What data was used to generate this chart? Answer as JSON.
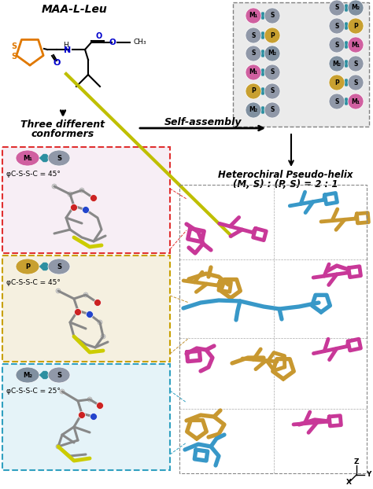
{
  "title": "MAA-L-Leu",
  "subtitle_conformers": "Three different\nconformers",
  "arrow_self_assembly": "Self-assembly",
  "helix_title": "Heterochiral Pseudo-helix\n(M, S) : (P, S) = 2 : 1",
  "box1_phi": "φC-S-S-C = 45°",
  "box2_phi": "φC-S-S-C = 45°",
  "box3_phi": "φC-S-S-C = 25°",
  "box1_bg": "#f7eef5",
  "box2_bg": "#f5f0e0",
  "box3_bg": "#e5f3f8",
  "box1_border": "#e03030",
  "box2_border": "#c8a000",
  "box3_border": "#30a0c0",
  "color_M1": "#d060a0",
  "color_P": "#c8a030",
  "color_M2": "#8090a0",
  "color_S": "#9098a8",
  "color_butterfly": "#2d8fa0",
  "color_blue_helix": "#3898c8",
  "color_magenta_helix": "#c83898",
  "color_gold_helix": "#c89830",
  "dashed_box_bg": "#ebebeb",
  "bg_color": "#ffffff",
  "connector_red": "#e03030",
  "connector_gold": "#c09030",
  "connector_blue": "#30a0c0"
}
